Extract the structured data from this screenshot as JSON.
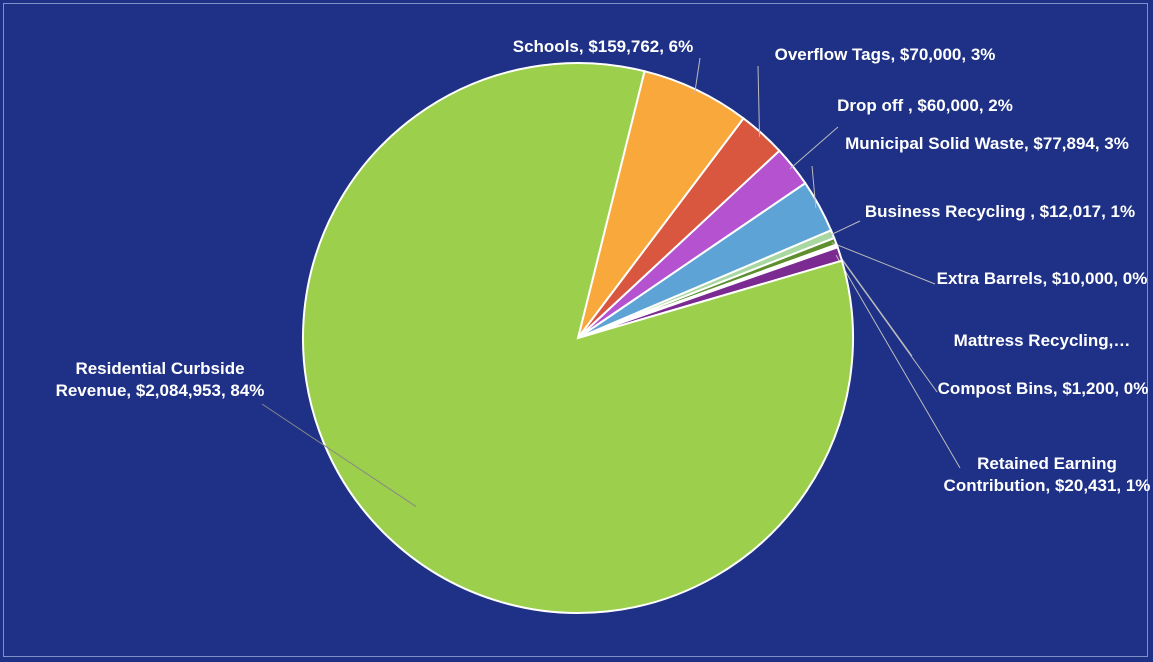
{
  "chart_data": {
    "type": "pie",
    "labels": [
      "Schools, $159,762, 6%",
      "Overflow Tags, $70,000, 3%",
      "Drop off , $60,000, 2%",
      "Municipal Solid Waste, $77,894, 3%",
      "Business Recycling , $12,017, 1%",
      "Extra Barrels, $10,000, 0%",
      "Mattress Recycling,…",
      "Compost Bins, $1,200, 0%",
      "Retained Earning Contribution, $20,431, 1%",
      "Residential Curbside Revenue, $2,084,953, 84%"
    ],
    "values": [
      159762,
      70000,
      60000,
      77894,
      12017,
      10000,
      3000,
      1200,
      20431,
      2084953
    ],
    "colors": [
      "#f9a83b",
      "#d9573f",
      "#b452cf",
      "#5da3d6",
      "#a9d7a2",
      "#5e8f2e",
      "#4472c4",
      "#e07b39",
      "#7a2a90",
      "#9ccf4c"
    ]
  }
}
